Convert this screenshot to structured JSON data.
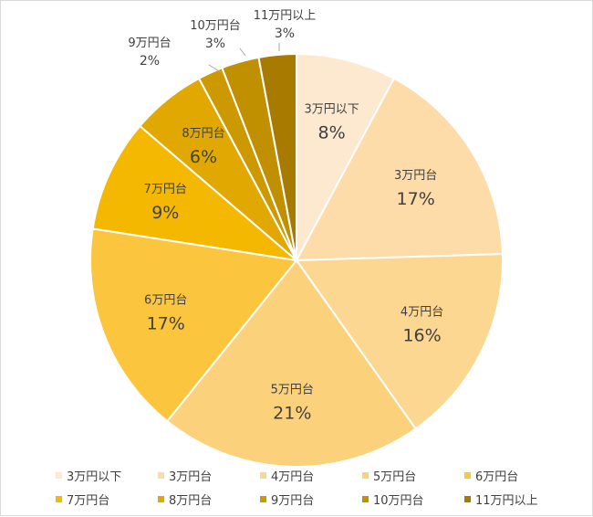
{
  "chart_data": {
    "type": "pie",
    "title": "",
    "legend_position": "bottom",
    "start_angle_deg": 0,
    "direction": "clockwise",
    "slices": [
      {
        "label": "3万円以下",
        "value": 8,
        "display": "8%",
        "color": "#fde9d0"
      },
      {
        "label": "3万円台",
        "value": 17,
        "display": "17%",
        "color": "#fddcaa"
      },
      {
        "label": "4万円台",
        "value": 16,
        "display": "16%",
        "color": "#fcd791"
      },
      {
        "label": "5万円台",
        "value": 21,
        "display": "21%",
        "color": "#fbd17c"
      },
      {
        "label": "6万円台",
        "value": 17,
        "display": "17%",
        "color": "#fbc53e"
      },
      {
        "label": "7万円台",
        "value": 9,
        "display": "9%",
        "color": "#f5b800"
      },
      {
        "label": "8万円台",
        "value": 6,
        "display": "6%",
        "color": "#e0a800"
      },
      {
        "label": "9万円台",
        "value": 2,
        "display": "2%",
        "color": "#cc9a00"
      },
      {
        "label": "10万円台",
        "value": 3,
        "display": "3%",
        "color": "#c09000"
      },
      {
        "label": "11万円以上",
        "value": 3,
        "display": "3%",
        "color": "#a87b00"
      }
    ]
  }
}
